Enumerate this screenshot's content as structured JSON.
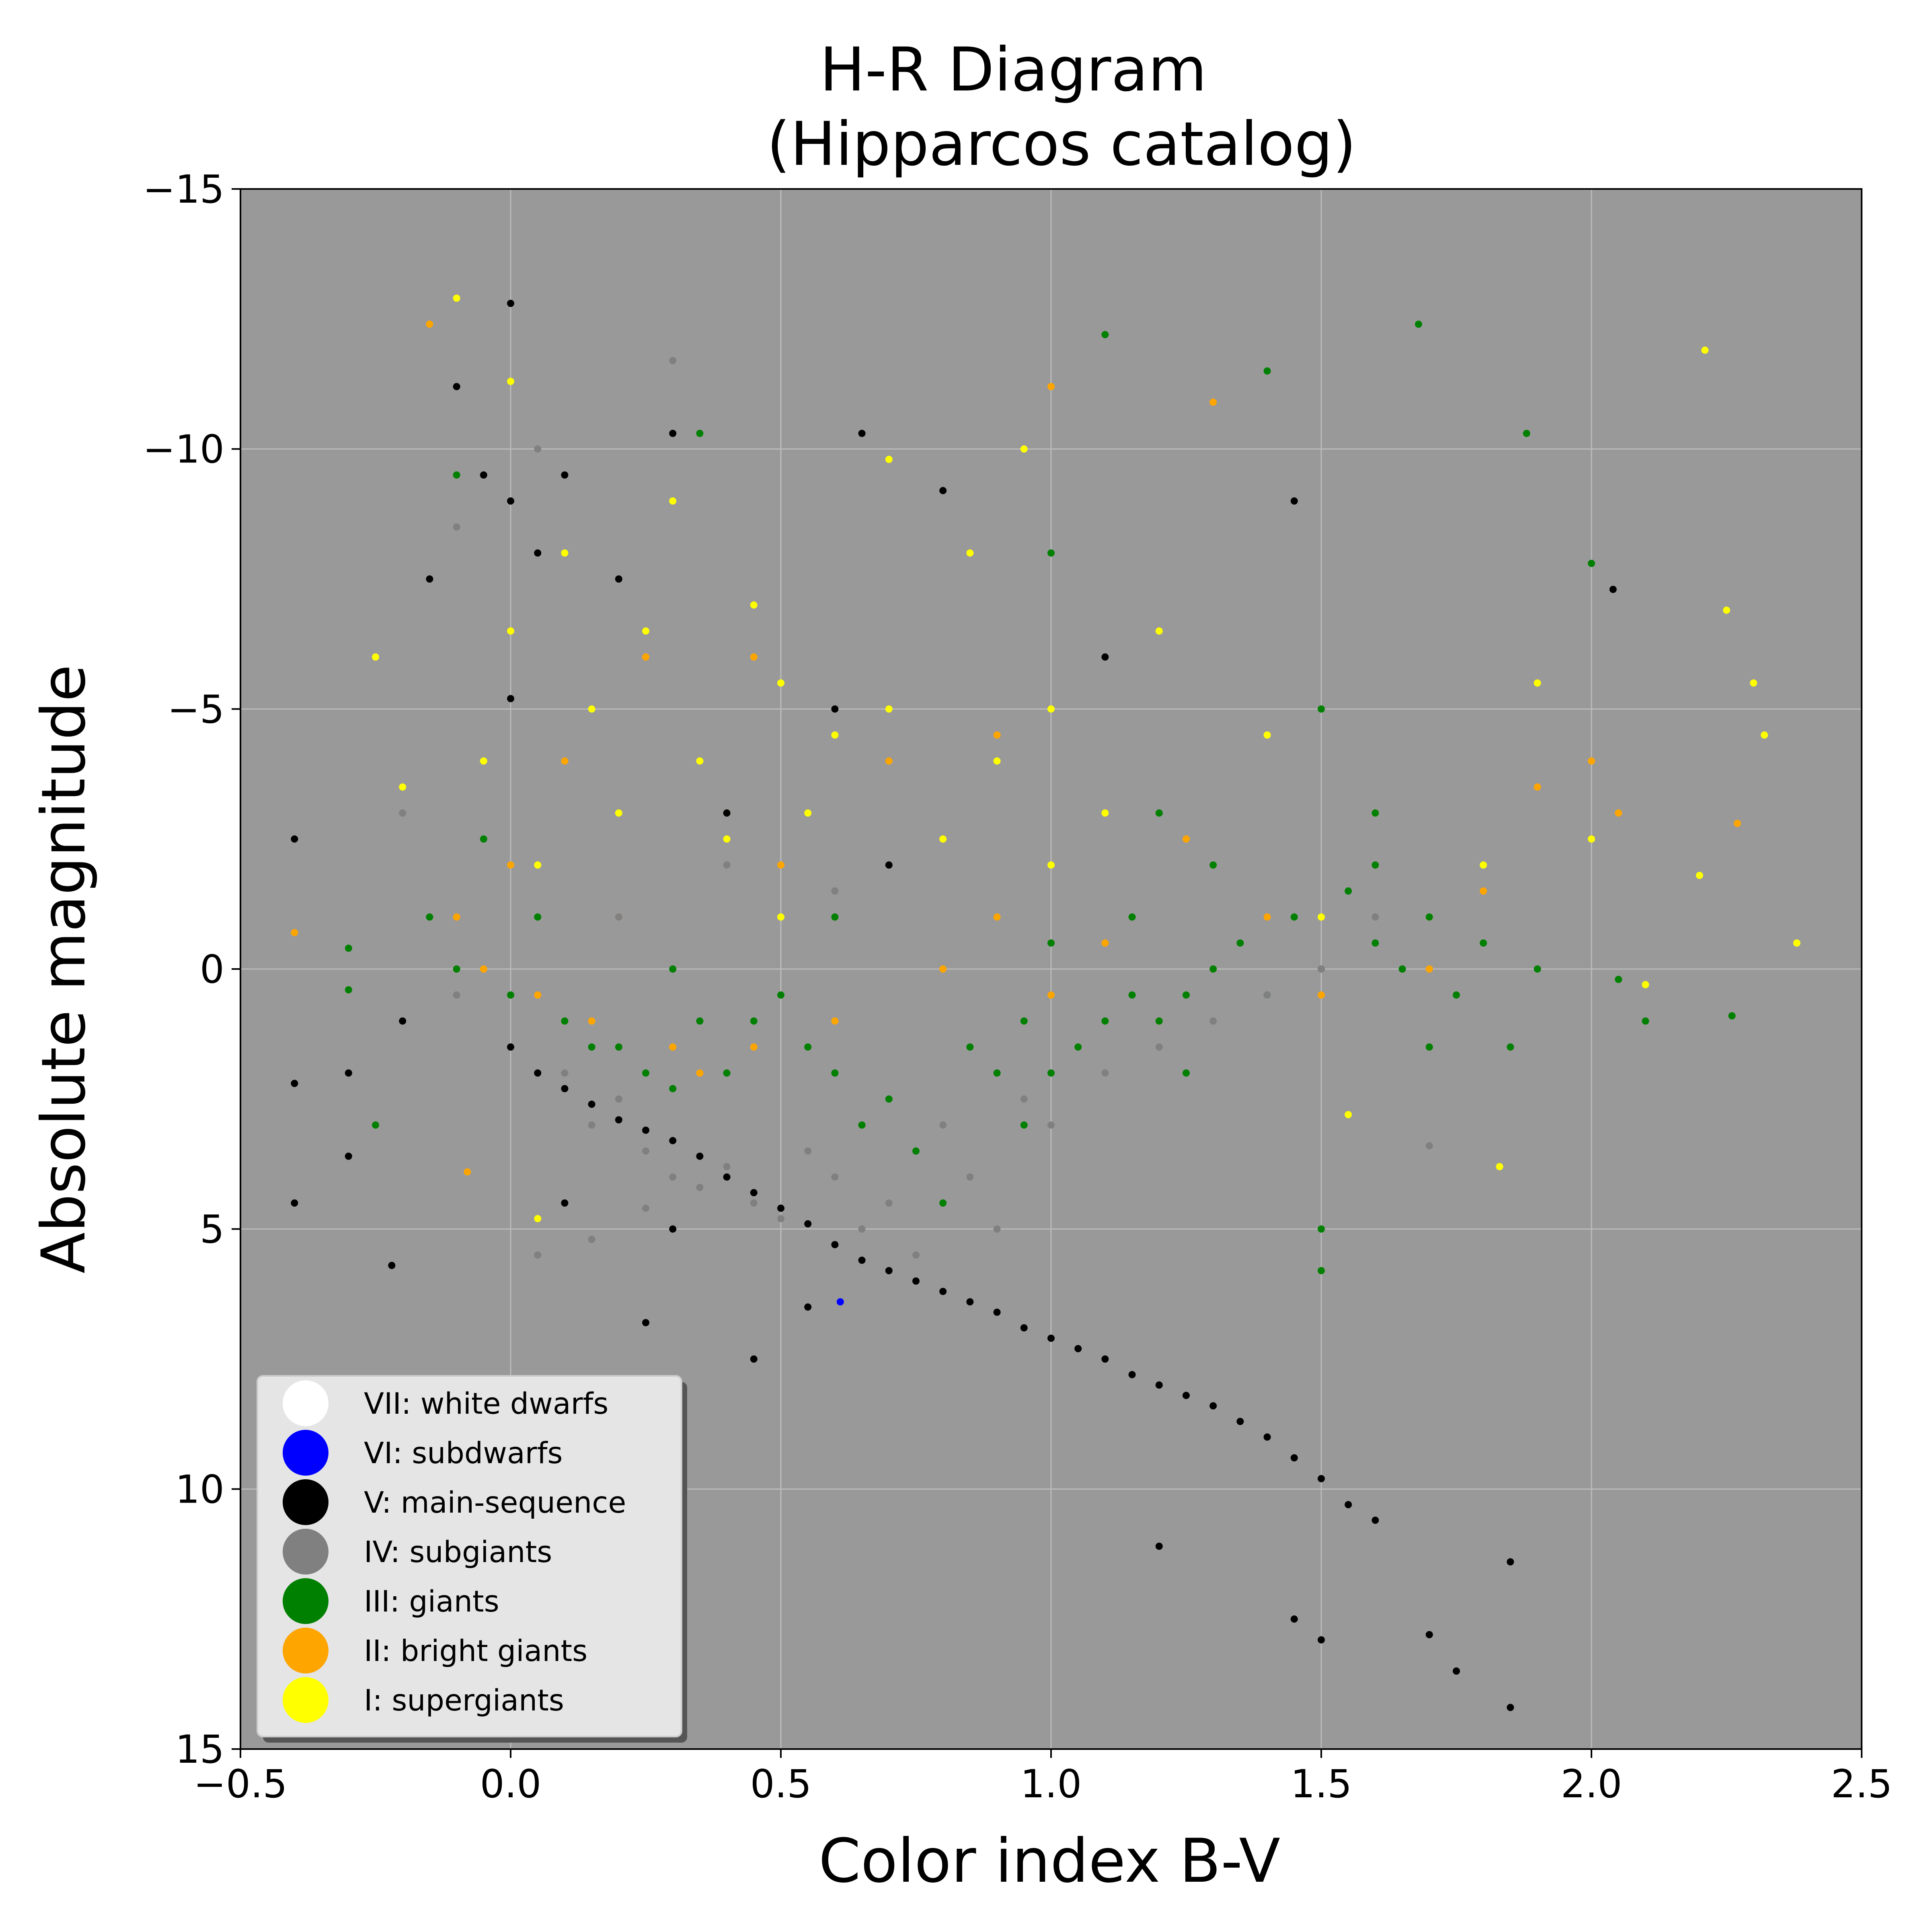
{
  "chart_data": {
    "type": "scatter",
    "title": {
      "line1": "H-R Diagram",
      "line2": "(Hipparcos catalog)"
    },
    "xlabel": "Color index B-V",
    "ylabel": "Absolute magnitude",
    "xlim": [
      -0.5,
      2.5
    ],
    "ylim": [
      15,
      -15
    ],
    "y_axis_inverted": true,
    "xticks": [
      -0.5,
      0.0,
      0.5,
      1.0,
      1.5,
      2.0,
      2.5
    ],
    "xtick_labels": [
      "−0.5",
      "0.0",
      "0.5",
      "1.0",
      "1.5",
      "2.0",
      "2.5"
    ],
    "yticks": [
      -15,
      -10,
      -5,
      0,
      5,
      10,
      15
    ],
    "ytick_labels": [
      "−15",
      "−10",
      "−5",
      "0",
      "5",
      "10",
      "15"
    ],
    "grid": true,
    "legend_position": "lower-left",
    "plot_background": "#999999",
    "grid_color": "#bbbbbb",
    "series": [
      {
        "name": "VII: white dwarfs",
        "color": "#ffffff",
        "points": []
      },
      {
        "name": "VI: subdwarfs",
        "color": "#0000ff",
        "points": [
          [
            0.61,
            6.4
          ]
        ]
      },
      {
        "name": "V: main-sequence",
        "color": "#000000",
        "points": [
          [
            -0.4,
            2.2
          ],
          [
            -0.4,
            -2.5
          ],
          [
            -0.4,
            4.5
          ],
          [
            -0.3,
            2.0
          ],
          [
            -0.3,
            3.6
          ],
          [
            -0.22,
            5.7
          ],
          [
            -0.2,
            1.0
          ],
          [
            -0.15,
            -7.5
          ],
          [
            -0.1,
            -11.2
          ],
          [
            -0.05,
            -9.5
          ],
          [
            0.0,
            -12.8
          ],
          [
            0.0,
            -9.0
          ],
          [
            0.0,
            -5.2
          ],
          [
            0.0,
            1.5
          ],
          [
            0.05,
            2.0
          ],
          [
            0.05,
            -8.0
          ],
          [
            0.1,
            2.3
          ],
          [
            0.1,
            -9.5
          ],
          [
            0.15,
            2.6
          ],
          [
            0.2,
            2.9
          ],
          [
            0.25,
            3.1
          ],
          [
            0.25,
            6.8
          ],
          [
            0.3,
            3.3
          ],
          [
            0.3,
            -10.3
          ],
          [
            0.35,
            3.6
          ],
          [
            0.4,
            4.0
          ],
          [
            0.4,
            -3.0
          ],
          [
            0.45,
            4.3
          ],
          [
            0.5,
            4.6
          ],
          [
            0.55,
            4.9
          ],
          [
            0.6,
            5.3
          ],
          [
            0.6,
            -5.0
          ],
          [
            0.65,
            5.6
          ],
          [
            0.65,
            -10.3
          ],
          [
            0.7,
            5.8
          ],
          [
            0.7,
            -2.0
          ],
          [
            0.75,
            6.0
          ],
          [
            0.8,
            6.2
          ],
          [
            0.8,
            -9.2
          ],
          [
            0.85,
            6.4
          ],
          [
            0.9,
            6.6
          ],
          [
            0.95,
            6.9
          ],
          [
            1.0,
            7.1
          ],
          [
            1.05,
            7.3
          ],
          [
            1.1,
            7.5
          ],
          [
            1.15,
            7.8
          ],
          [
            1.2,
            8.0
          ],
          [
            1.25,
            8.2
          ],
          [
            1.3,
            8.4
          ],
          [
            1.35,
            8.7
          ],
          [
            1.4,
            9.0
          ],
          [
            1.45,
            9.4
          ],
          [
            1.5,
            9.8
          ],
          [
            1.55,
            10.3
          ],
          [
            1.6,
            10.6
          ],
          [
            1.45,
            12.5
          ],
          [
            1.5,
            12.9
          ],
          [
            1.7,
            12.8
          ],
          [
            1.75,
            13.5
          ],
          [
            1.85,
            14.2
          ],
          [
            1.85,
            11.4
          ],
          [
            2.04,
            -7.3
          ],
          [
            1.2,
            11.1
          ],
          [
            0.3,
            5.0
          ],
          [
            0.45,
            7.5
          ],
          [
            0.55,
            6.5
          ],
          [
            1.1,
            -6.0
          ],
          [
            1.45,
            -9.0
          ],
          [
            0.2,
            -7.5
          ],
          [
            0.1,
            4.5
          ]
        ]
      },
      {
        "name": "IV: subgiants",
        "color": "#808080",
        "points": [
          [
            -0.2,
            -3.0
          ],
          [
            -0.1,
            -8.5
          ],
          [
            -0.1,
            0.5
          ],
          [
            0.0,
            1.5
          ],
          [
            0.05,
            -10.0
          ],
          [
            0.1,
            2.0
          ],
          [
            0.15,
            3.0
          ],
          [
            0.2,
            2.5
          ],
          [
            0.25,
            3.5
          ],
          [
            0.3,
            -11.7
          ],
          [
            0.3,
            4.0
          ],
          [
            0.35,
            4.2
          ],
          [
            0.4,
            3.8
          ],
          [
            0.45,
            4.5
          ],
          [
            0.5,
            4.8
          ],
          [
            0.55,
            3.5
          ],
          [
            0.6,
            4.0
          ],
          [
            0.65,
            5.0
          ],
          [
            0.7,
            4.5
          ],
          [
            0.75,
            5.5
          ],
          [
            0.8,
            3.0
          ],
          [
            0.85,
            4.0
          ],
          [
            0.9,
            5.0
          ],
          [
            0.95,
            2.5
          ],
          [
            1.0,
            3.0
          ],
          [
            1.1,
            2.0
          ],
          [
            1.2,
            1.5
          ],
          [
            1.3,
            1.0
          ],
          [
            1.4,
            0.5
          ],
          [
            1.5,
            0.0
          ],
          [
            1.6,
            -1.0
          ],
          [
            1.7,
            3.4
          ],
          [
            0.2,
            -1.0
          ],
          [
            0.4,
            -2.0
          ],
          [
            0.6,
            -1.5
          ],
          [
            0.05,
            5.5
          ],
          [
            0.15,
            5.2
          ],
          [
            0.25,
            4.6
          ]
        ]
      },
      {
        "name": "III: giants",
        "color": "#008000",
        "points": [
          [
            -0.3,
            0.4
          ],
          [
            -0.25,
            3.0
          ],
          [
            -0.15,
            -1.0
          ],
          [
            -0.1,
            0.0
          ],
          [
            -0.1,
            -9.5
          ],
          [
            -0.05,
            -2.5
          ],
          [
            0.0,
            0.5
          ],
          [
            0.05,
            -1.0
          ],
          [
            0.1,
            1.0
          ],
          [
            0.15,
            1.5
          ],
          [
            0.2,
            1.5
          ],
          [
            0.25,
            2.0
          ],
          [
            0.3,
            2.3
          ],
          [
            0.35,
            -10.3
          ],
          [
            0.35,
            1.0
          ],
          [
            0.4,
            2.0
          ],
          [
            0.45,
            1.0
          ],
          [
            0.5,
            0.5
          ],
          [
            0.55,
            1.5
          ],
          [
            0.6,
            2.0
          ],
          [
            0.65,
            3.0
          ],
          [
            0.7,
            2.5
          ],
          [
            0.75,
            3.5
          ],
          [
            0.8,
            4.5
          ],
          [
            0.85,
            1.5
          ],
          [
            0.9,
            2.0
          ],
          [
            0.95,
            1.0
          ],
          [
            1.0,
            2.0
          ],
          [
            1.0,
            -0.5
          ],
          [
            1.0,
            -8.0
          ],
          [
            1.05,
            1.5
          ],
          [
            1.1,
            1.0
          ],
          [
            1.1,
            -12.2
          ],
          [
            1.15,
            0.5
          ],
          [
            1.2,
            1.0
          ],
          [
            1.2,
            -3.0
          ],
          [
            1.25,
            0.5
          ],
          [
            1.3,
            0.0
          ],
          [
            1.3,
            -2.0
          ],
          [
            1.35,
            -0.5
          ],
          [
            1.4,
            0.5
          ],
          [
            1.4,
            -11.5
          ],
          [
            1.45,
            -1.0
          ],
          [
            1.5,
            0.0
          ],
          [
            1.5,
            -5.0
          ],
          [
            1.55,
            -1.5
          ],
          [
            1.6,
            -0.5
          ],
          [
            1.6,
            -3.0
          ],
          [
            1.65,
            0.0
          ],
          [
            1.68,
            -12.4
          ],
          [
            1.7,
            -1.0
          ],
          [
            1.75,
            0.5
          ],
          [
            1.8,
            -0.5
          ],
          [
            1.85,
            1.5
          ],
          [
            1.88,
            -10.3
          ],
          [
            1.9,
            0.0
          ],
          [
            2.0,
            -7.8
          ],
          [
            2.05,
            0.2
          ],
          [
            2.1,
            1.0
          ],
          [
            2.26,
            0.9
          ],
          [
            -0.3,
            -0.4
          ],
          [
            1.5,
            5.8
          ],
          [
            1.5,
            5.0
          ],
          [
            0.3,
            0.0
          ],
          [
            0.6,
            -1.0
          ],
          [
            1.6,
            -2.0
          ],
          [
            1.7,
            1.5
          ],
          [
            1.25,
            2.0
          ],
          [
            0.95,
            3.0
          ],
          [
            1.15,
            -1.0
          ]
        ]
      },
      {
        "name": "II: bright giants",
        "color": "#ffa500",
        "points": [
          [
            -0.4,
            -0.7
          ],
          [
            -0.15,
            -12.4
          ],
          [
            -0.1,
            -1.0
          ],
          [
            -0.05,
            0.0
          ],
          [
            0.0,
            -2.0
          ],
          [
            0.05,
            0.5
          ],
          [
            0.1,
            -4.0
          ],
          [
            0.15,
            1.0
          ],
          [
            0.2,
            -1.0
          ],
          [
            0.25,
            -6.0
          ],
          [
            0.3,
            1.5
          ],
          [
            0.35,
            2.0
          ],
          [
            0.4,
            -3.0
          ],
          [
            0.45,
            1.5
          ],
          [
            0.5,
            -2.0
          ],
          [
            0.6,
            1.0
          ],
          [
            0.7,
            -4.0
          ],
          [
            0.8,
            0.0
          ],
          [
            0.9,
            -1.0
          ],
          [
            1.0,
            0.5
          ],
          [
            1.0,
            -11.2
          ],
          [
            1.1,
            -0.5
          ],
          [
            1.2,
            1.0
          ],
          [
            1.3,
            -10.9
          ],
          [
            1.3,
            0.0
          ],
          [
            1.4,
            -1.0
          ],
          [
            1.5,
            0.5
          ],
          [
            1.6,
            -2.0
          ],
          [
            1.7,
            0.0
          ],
          [
            1.8,
            -1.5
          ],
          [
            1.9,
            -3.5
          ],
          [
            2.0,
            -4.0
          ],
          [
            2.05,
            -3.0
          ],
          [
            2.27,
            -2.8
          ],
          [
            -0.08,
            3.9
          ],
          [
            0.45,
            -6.0
          ],
          [
            0.9,
            -4.5
          ],
          [
            1.25,
            -2.5
          ]
        ]
      },
      {
        "name": "I: supergiants",
        "color": "#ffff00",
        "points": [
          [
            -0.25,
            -6.0
          ],
          [
            -0.2,
            -3.5
          ],
          [
            -0.1,
            -12.9
          ],
          [
            -0.05,
            -4.0
          ],
          [
            0.0,
            -11.3
          ],
          [
            0.0,
            -6.5
          ],
          [
            0.05,
            -2.0
          ],
          [
            0.1,
            -8.0
          ],
          [
            0.15,
            -5.0
          ],
          [
            0.2,
            -3.0
          ],
          [
            0.25,
            -6.5
          ],
          [
            0.3,
            -9.0
          ],
          [
            0.35,
            -4.0
          ],
          [
            0.4,
            -2.5
          ],
          [
            0.45,
            -7.0
          ],
          [
            0.5,
            -5.5
          ],
          [
            0.55,
            -3.0
          ],
          [
            0.6,
            -4.5
          ],
          [
            0.7,
            -9.8
          ],
          [
            0.7,
            -5.0
          ],
          [
            0.8,
            -2.5
          ],
          [
            0.85,
            -8.0
          ],
          [
            0.9,
            -4.0
          ],
          [
            0.95,
            -10.0
          ],
          [
            1.0,
            -2.0
          ],
          [
            1.0,
            -5.0
          ],
          [
            1.1,
            -3.0
          ],
          [
            1.2,
            -6.5
          ],
          [
            1.3,
            -2.0
          ],
          [
            1.4,
            -4.5
          ],
          [
            1.5,
            -1.0
          ],
          [
            1.6,
            -3.0
          ],
          [
            1.7,
            -1.0
          ],
          [
            1.8,
            -2.0
          ],
          [
            1.83,
            3.8
          ],
          [
            1.9,
            -5.5
          ],
          [
            2.0,
            -2.5
          ],
          [
            2.1,
            0.3
          ],
          [
            2.2,
            -1.8
          ],
          [
            2.21,
            -11.9
          ],
          [
            2.25,
            -6.9
          ],
          [
            2.3,
            -5.5
          ],
          [
            2.32,
            -4.5
          ],
          [
            2.38,
            -0.5
          ],
          [
            0.05,
            4.8
          ],
          [
            0.5,
            -1.0
          ],
          [
            1.05,
            1.5
          ],
          [
            1.55,
            2.8
          ]
        ]
      }
    ]
  }
}
